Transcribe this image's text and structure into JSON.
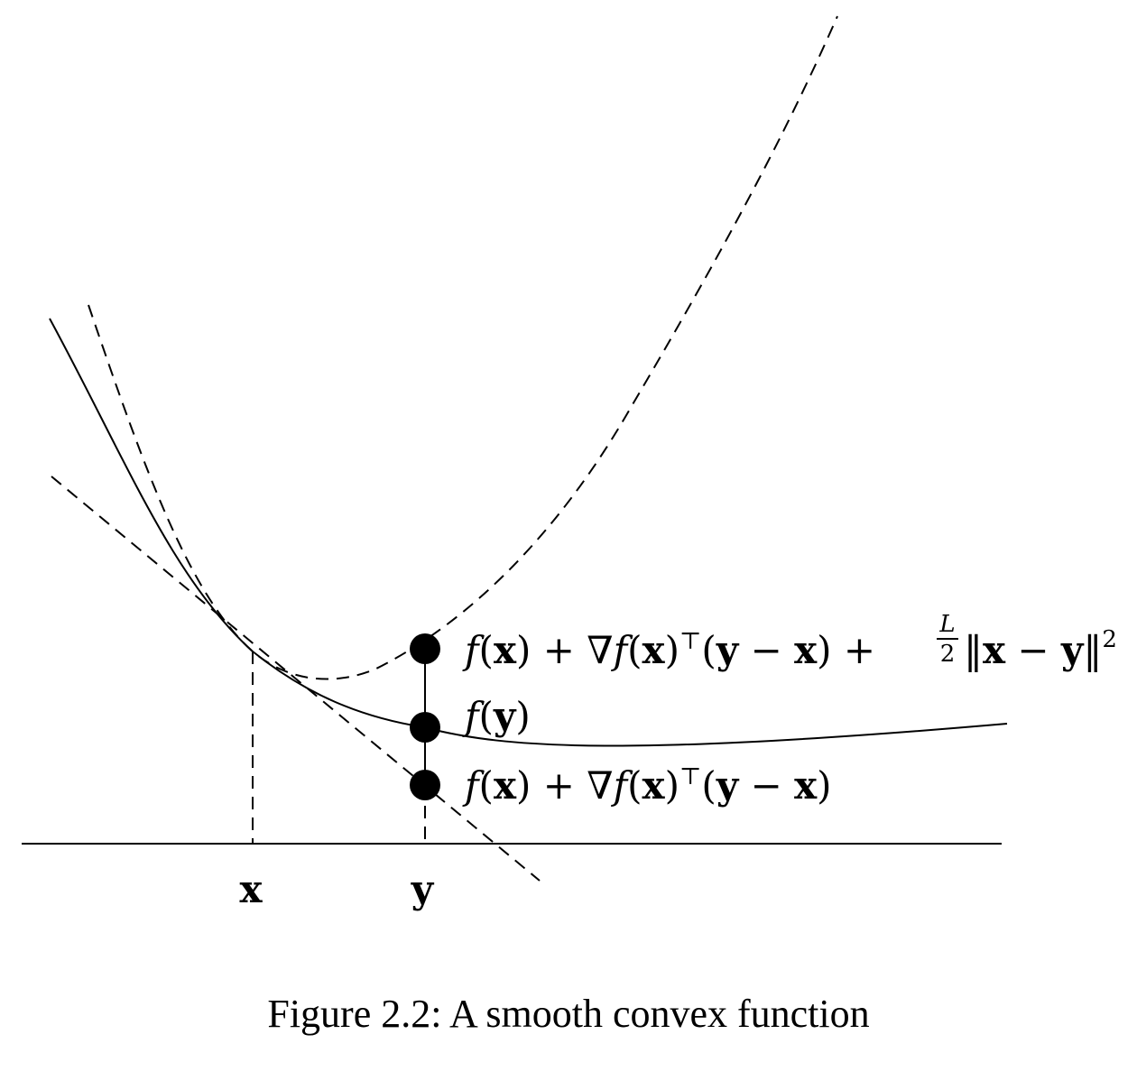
{
  "labels": {
    "x_axis_point_x": "x",
    "x_axis_point_y": "y",
    "upper_bound": {
      "f_open": "f",
      "paren_open": "(",
      "x1": "x",
      "paren_close_plus": ") + ∇",
      "f2": "f",
      "paren_open2": "(",
      "x2": "x",
      "paren_close_T": ")",
      "transpose": "⊤",
      "paren_open3": "(",
      "y1": "y",
      "minus": " − ",
      "x3": "x",
      "paren_close_plus2": ") + ",
      "frac_num": "L",
      "frac_den": "2",
      "norm_open": "‖",
      "x4": "x",
      "minus2": " − ",
      "y2": "y",
      "norm_close": "‖",
      "sq": "2"
    },
    "fy": {
      "f": "f",
      "paren_open": "(",
      "y": "y",
      "paren_close": ")"
    },
    "lower_bound": {
      "f_open": "f",
      "paren_open": "(",
      "x1": "x",
      "paren_close_plus": ") + ∇",
      "f2": "f",
      "paren_open2": "(",
      "x2": "x",
      "paren_close_T": ")",
      "transpose": "⊤",
      "paren_open3": "(",
      "y1": "y",
      "minus": " − ",
      "x3": "x",
      "paren_close": ")"
    }
  },
  "caption": "Figure 2.2: A smooth convex function"
}
